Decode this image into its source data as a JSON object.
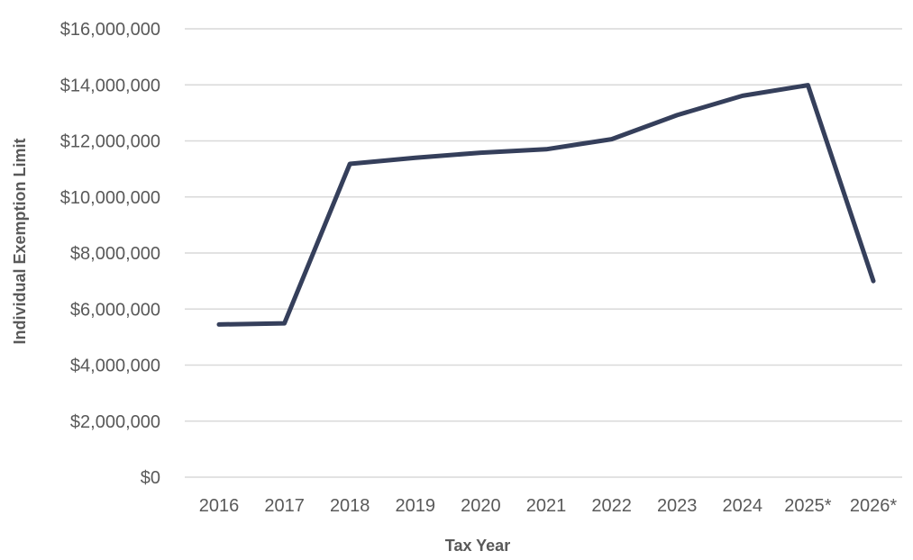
{
  "chart_data": {
    "type": "line",
    "title": "",
    "xlabel": "Tax Year",
    "ylabel": "Individual Exemption Limit",
    "categories": [
      "2016",
      "2017",
      "2018",
      "2019",
      "2020",
      "2021",
      "2022",
      "2023",
      "2024",
      "2025*",
      "2026*"
    ],
    "series": [
      {
        "values": [
          5450000,
          5490000,
          11180000,
          11400000,
          11580000,
          11700000,
          12060000,
          12920000,
          13610000,
          13990000,
          7000000
        ],
        "color": "#353f5b"
      }
    ],
    "ylim": [
      0,
      16000000
    ],
    "yticks": [
      0,
      2000000,
      4000000,
      6000000,
      8000000,
      10000000,
      12000000,
      14000000,
      16000000
    ],
    "ytick_labels": [
      "$0",
      "$2,000,000",
      "$4,000,000",
      "$6,000,000",
      "$8,000,000",
      "$10,000,000",
      "$12,000,000",
      "$14,000,000",
      "$16,000,000"
    ],
    "grid": true,
    "legend": "none"
  }
}
